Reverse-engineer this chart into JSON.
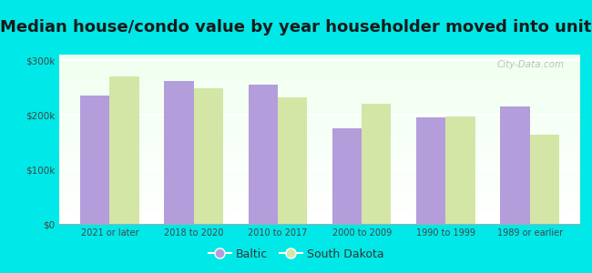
{
  "title": "Median house/condo value by year householder moved into unit",
  "categories": [
    "2021 or later",
    "2018 to 2020",
    "2010 to 2017",
    "2000 to 2009",
    "1990 to 1999",
    "1989 or earlier"
  ],
  "baltic_values": [
    235000,
    262000,
    255000,
    175000,
    195000,
    215000
  ],
  "sd_values": [
    270000,
    248000,
    232000,
    220000,
    197000,
    163000
  ],
  "baltic_color": "#b39ddb",
  "sd_color": "#d4e6a5",
  "background_color": "#00e8e8",
  "ylim": [
    0,
    310000
  ],
  "yticks": [
    0,
    100000,
    200000,
    300000
  ],
  "ytick_labels": [
    "$0",
    "$100k",
    "$200k",
    "$300k"
  ],
  "legend_labels": [
    "Baltic",
    "South Dakota"
  ],
  "bar_width": 0.35,
  "title_fontsize": 13,
  "watermark_text": "City-Data.com"
}
